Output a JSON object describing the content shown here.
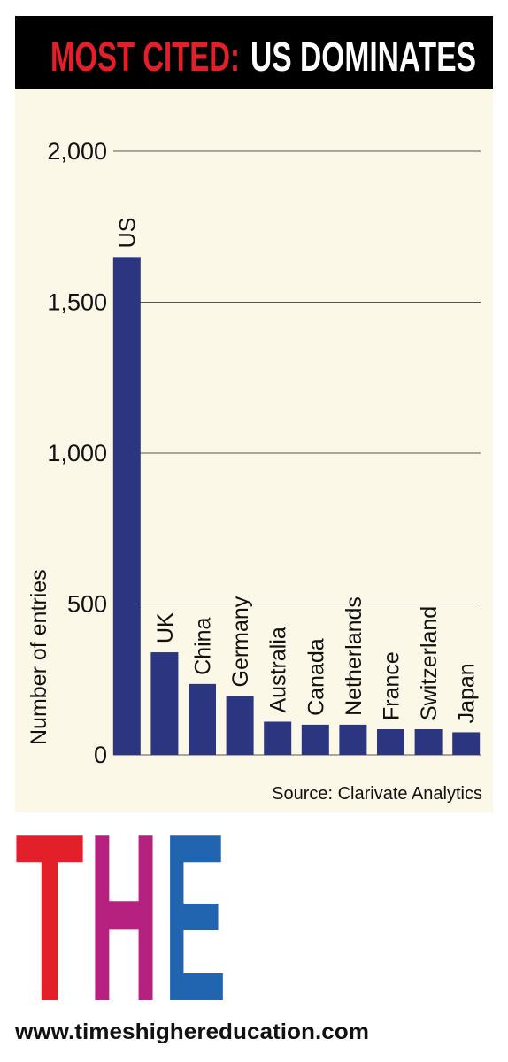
{
  "chart_data": {
    "type": "bar",
    "title_kicker": "MOST CITED:",
    "title": "US DOMINATES",
    "y_label": "Number of entries",
    "categories": [
      "US",
      "UK",
      "China",
      "Germany",
      "Australia",
      "Canada",
      "Netherlands",
      "France",
      "Switzerland",
      "Japan"
    ],
    "values": [
      1650,
      340,
      235,
      195,
      110,
      100,
      100,
      85,
      85,
      75
    ],
    "color": "#2b3580",
    "ylim": [
      0,
      2000
    ],
    "yticks": [
      0,
      500,
      {
        "value": 1000,
        "label": "1,000"
      },
      {
        "value": 1500,
        "label": "1,500"
      },
      {
        "value": 2000,
        "label": "2,000"
      }
    ],
    "grid": true,
    "source": "Source: Clarivate Analytics"
  },
  "logo": [
    "T",
    "H",
    "E"
  ],
  "url": "www.timeshighereducation.com"
}
